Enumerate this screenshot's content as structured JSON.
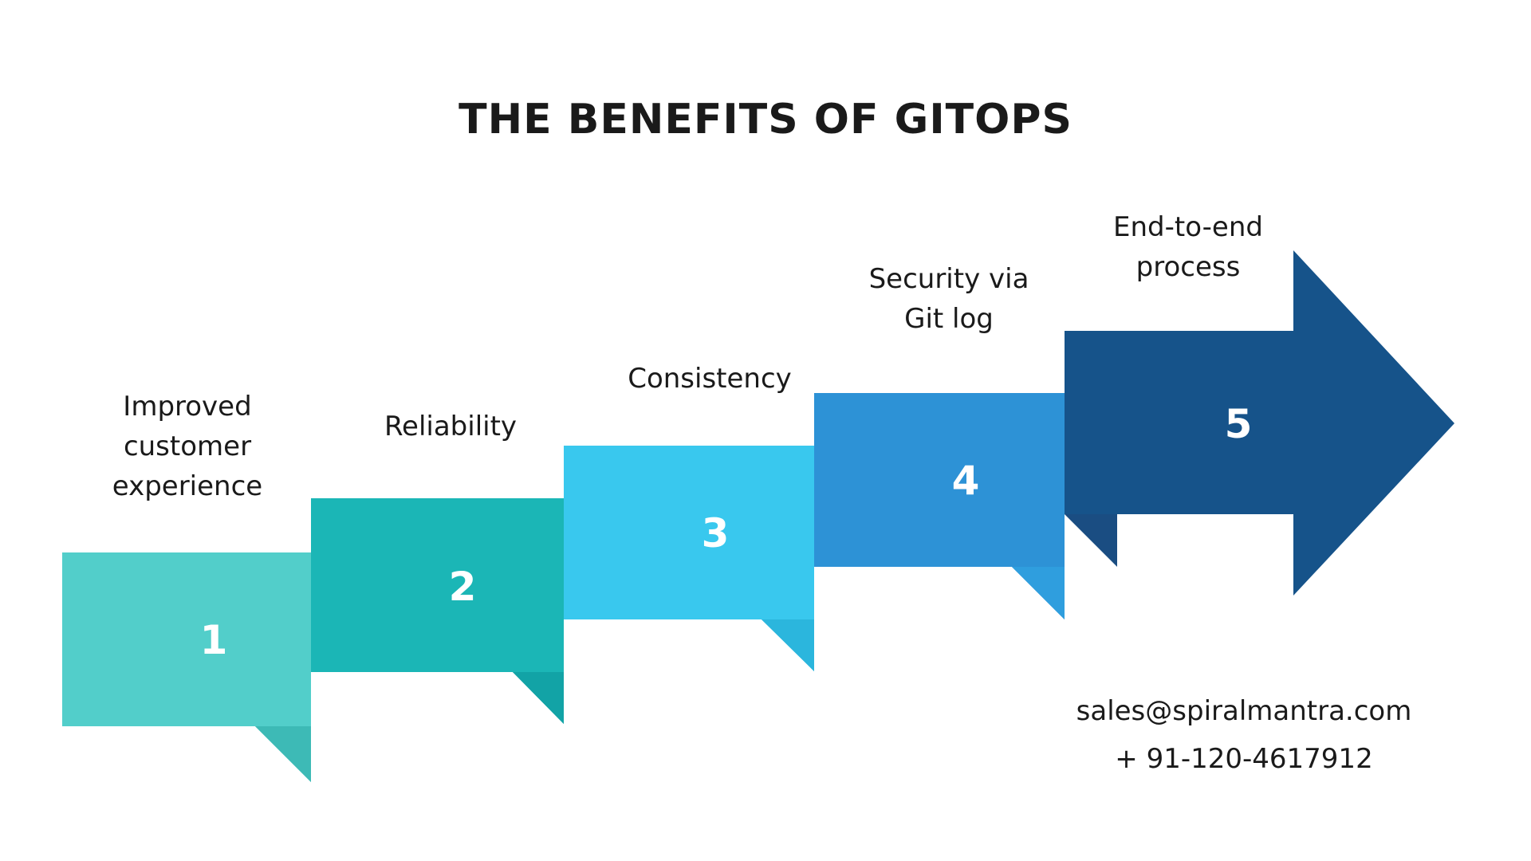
{
  "title": "THE BENEFITS OF GITOPS",
  "steps": [
    {
      "number": "1",
      "label_lines": [
        "Improved",
        "customer",
        "experience"
      ],
      "color": "#52CECA",
      "fold_color": "#3DBAB6"
    },
    {
      "number": "2",
      "label_lines": [
        "Reliability"
      ],
      "color": "#1BB6B6",
      "fold_color": "#12A3A6"
    },
    {
      "number": "3",
      "label_lines": [
        "Consistency"
      ],
      "color": "#39C8EE",
      "fold_color": "#2BB6DD"
    },
    {
      "number": "4",
      "label_lines": [
        "Security via",
        "Git log"
      ],
      "color": "#2D92D6",
      "fold_color": "#2F9EDE"
    },
    {
      "number": "5",
      "label_lines": [
        "End-to-end",
        "process"
      ],
      "color": "#16538A",
      "fold_color": "#15507F"
    }
  ],
  "contact": {
    "email": "sales@spiralmantra.com",
    "phone": "+ 91-120-4617912"
  },
  "colors": {
    "number_text": "#ffffff",
    "text": "#1a1a1a"
  }
}
